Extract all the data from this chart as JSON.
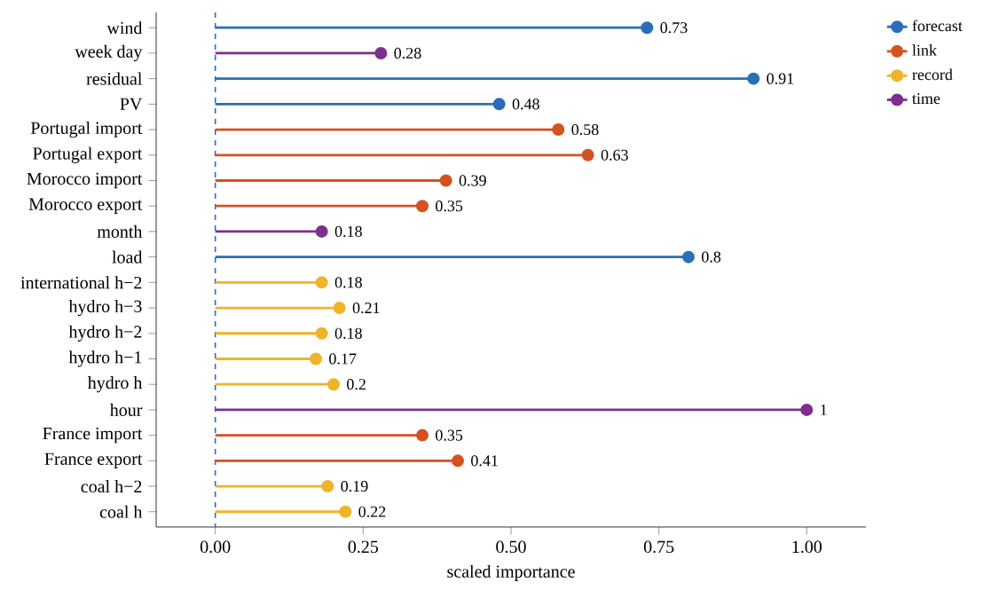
{
  "chart_data": {
    "type": "lollipop",
    "orientation": "horizontal",
    "xlabel": "scaled importance",
    "categories": [
      "wind",
      "week day",
      "residual",
      "PV",
      "Portugal import",
      "Portugal export",
      "Morocco import",
      "Morocco export",
      "month",
      "load",
      "international h−2",
      "hydro h−3",
      "hydro h−2",
      "hydro h−1",
      "hydro h",
      "hour",
      "France import",
      "France export",
      "coal h−2",
      "coal h"
    ],
    "series": [
      {
        "name": "forecast",
        "color": "#2a6ebb",
        "values": [
          0.73,
          null,
          0.91,
          0.48,
          null,
          null,
          null,
          null,
          null,
          0.8,
          null,
          null,
          null,
          null,
          null,
          null,
          null,
          null,
          null,
          null
        ]
      },
      {
        "name": "link",
        "color": "#d4521f",
        "values": [
          null,
          null,
          null,
          null,
          0.58,
          0.63,
          0.39,
          0.35,
          null,
          null,
          null,
          null,
          null,
          null,
          null,
          null,
          0.35,
          0.41,
          null,
          null
        ]
      },
      {
        "name": "record",
        "color": "#f0b429",
        "values": [
          null,
          null,
          null,
          null,
          null,
          null,
          null,
          null,
          null,
          null,
          0.18,
          0.21,
          0.18,
          0.17,
          0.2,
          null,
          null,
          null,
          0.19,
          0.22
        ]
      },
      {
        "name": "time",
        "color": "#7e2f8e",
        "values": [
          null,
          0.28,
          null,
          null,
          null,
          null,
          null,
          null,
          0.18,
          null,
          null,
          null,
          null,
          null,
          null,
          1,
          null,
          null,
          null,
          null
        ]
      }
    ],
    "xlim": [
      -0.1,
      1.1
    ],
    "xticks": [
      {
        "value": 0,
        "label": "0.00"
      },
      {
        "value": 0.25,
        "label": "0.25"
      },
      {
        "value": 0.5,
        "label": "0.50"
      },
      {
        "value": 0.75,
        "label": "0.75"
      },
      {
        "value": 1,
        "label": "1.00"
      }
    ],
    "ref_lines": [
      {
        "axis": "x",
        "value": 0,
        "color": "#2a6ebb",
        "line_style": "dashed"
      }
    ],
    "data_labels": true,
    "marker": "circle",
    "legend": "top right",
    "grid": false
  }
}
